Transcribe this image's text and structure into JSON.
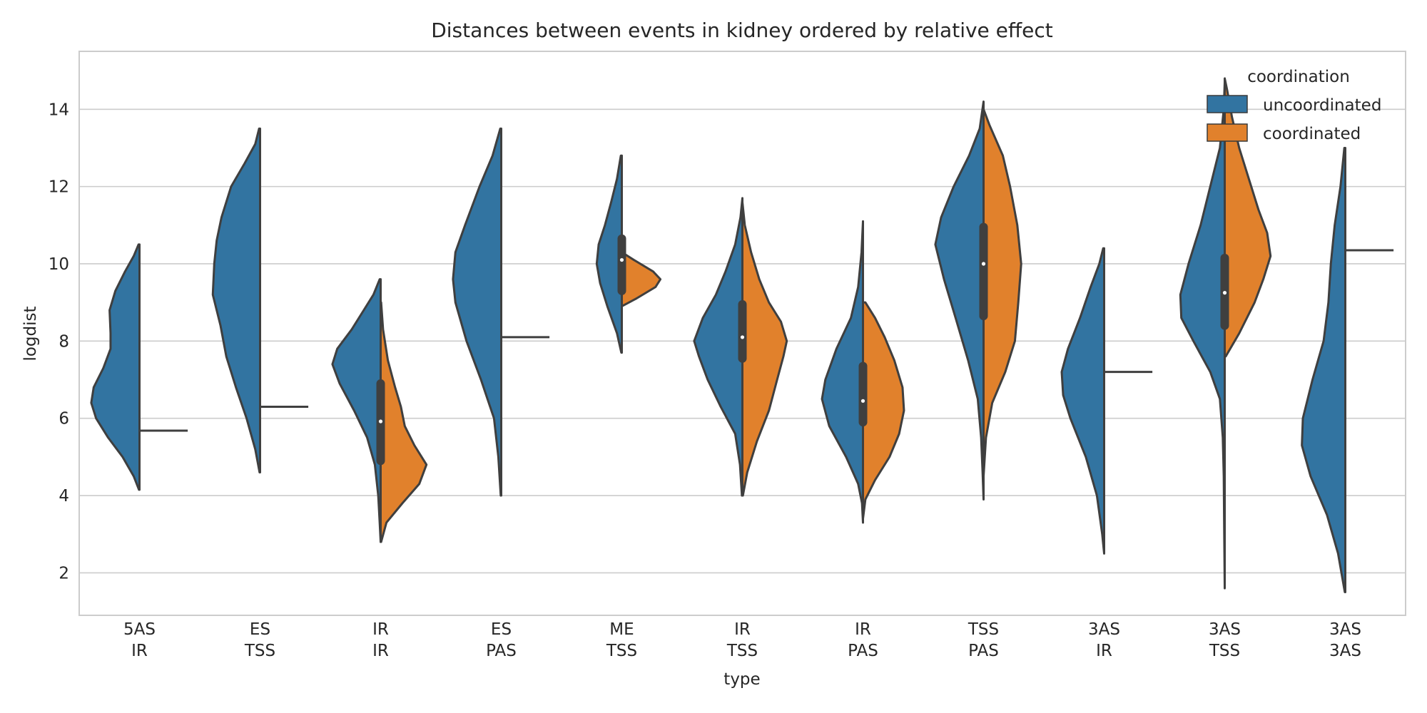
{
  "chart_data": {
    "type": "violin",
    "title": "Distances between events in kidney ordered by relative effect",
    "xlabel": "type",
    "ylabel": "logdist",
    "ylim": [
      0.9,
      15.5
    ],
    "yticks": [
      2,
      4,
      6,
      8,
      10,
      12,
      14
    ],
    "grid": true,
    "split": true,
    "categories": [
      {
        "top": "5AS",
        "bottom": "IR"
      },
      {
        "top": "ES",
        "bottom": "TSS"
      },
      {
        "top": "IR",
        "bottom": "IR"
      },
      {
        "top": "ES",
        "bottom": "PAS"
      },
      {
        "top": "ME",
        "bottom": "TSS"
      },
      {
        "top": "IR",
        "bottom": "TSS"
      },
      {
        "top": "IR",
        "bottom": "PAS"
      },
      {
        "top": "TSS",
        "bottom": "PAS"
      },
      {
        "top": "3AS",
        "bottom": "IR"
      },
      {
        "top": "3AS",
        "bottom": "TSS"
      },
      {
        "top": "3AS",
        "bottom": "3AS"
      }
    ],
    "legend": {
      "title": "coordination",
      "position": "top-right",
      "entries": [
        {
          "label": "uncoordinated",
          "color": "#3274a1"
        },
        {
          "label": "coordinated",
          "color": "#e1812c"
        }
      ]
    },
    "series": [
      {
        "name": "uncoordinated",
        "color": "#3274a1",
        "violins": [
          {
            "profile": [
              [
                4.15,
                0.01
              ],
              [
                4.5,
                0.12
              ],
              [
                5.0,
                0.35
              ],
              [
                5.5,
                0.65
              ],
              [
                6.0,
                0.9
              ],
              [
                6.4,
                1.0
              ],
              [
                6.8,
                0.95
              ],
              [
                7.3,
                0.75
              ],
              [
                7.8,
                0.6
              ],
              [
                8.2,
                0.6
              ],
              [
                8.8,
                0.62
              ],
              [
                9.3,
                0.5
              ],
              [
                9.8,
                0.3
              ],
              [
                10.2,
                0.12
              ],
              [
                10.5,
                0.02
              ]
            ]
          },
          {
            "profile": [
              [
                4.6,
                0.01
              ],
              [
                5.2,
                0.1
              ],
              [
                6.0,
                0.28
              ],
              [
                6.8,
                0.5
              ],
              [
                7.6,
                0.7
              ],
              [
                8.4,
                0.82
              ],
              [
                9.2,
                0.98
              ],
              [
                10.0,
                0.95
              ],
              [
                10.6,
                0.9
              ],
              [
                11.2,
                0.8
              ],
              [
                12.0,
                0.6
              ],
              [
                12.6,
                0.32
              ],
              [
                13.1,
                0.1
              ],
              [
                13.5,
                0.02
              ]
            ]
          },
          {
            "profile": [
              [
                2.8,
                0.0
              ],
              [
                3.3,
                0.02
              ],
              [
                4.0,
                0.05
              ],
              [
                4.8,
                0.12
              ],
              [
                5.5,
                0.28
              ],
              [
                6.2,
                0.55
              ],
              [
                6.9,
                0.85
              ],
              [
                7.4,
                1.0
              ],
              [
                7.8,
                0.9
              ],
              [
                8.3,
                0.6
              ],
              [
                8.8,
                0.35
              ],
              [
                9.2,
                0.15
              ],
              [
                9.6,
                0.02
              ]
            ]
          },
          {
            "profile": [
              [
                4.0,
                0.01
              ],
              [
                5.0,
                0.06
              ],
              [
                6.0,
                0.15
              ],
              [
                7.0,
                0.42
              ],
              [
                8.0,
                0.72
              ],
              [
                9.0,
                0.95
              ],
              [
                9.6,
                1.0
              ],
              [
                10.3,
                0.95
              ],
              [
                11.0,
                0.75
              ],
              [
                12.0,
                0.45
              ],
              [
                12.8,
                0.18
              ],
              [
                13.5,
                0.02
              ]
            ]
          },
          {
            "profile": [
              [
                7.7,
                0.01
              ],
              [
                8.2,
                0.1
              ],
              [
                8.9,
                0.3
              ],
              [
                9.5,
                0.45
              ],
              [
                10.0,
                0.52
              ],
              [
                10.5,
                0.48
              ],
              [
                11.0,
                0.35
              ],
              [
                11.6,
                0.22
              ],
              [
                12.2,
                0.1
              ],
              [
                12.8,
                0.02
              ]
            ]
          },
          {
            "profile": [
              [
                4.0,
                0.01
              ],
              [
                4.8,
                0.05
              ],
              [
                5.6,
                0.15
              ],
              [
                6.3,
                0.45
              ],
              [
                7.0,
                0.72
              ],
              [
                7.6,
                0.9
              ],
              [
                8.0,
                1.0
              ],
              [
                8.6,
                0.82
              ],
              [
                9.2,
                0.55
              ],
              [
                9.8,
                0.35
              ],
              [
                10.5,
                0.15
              ],
              [
                11.2,
                0.04
              ],
              [
                11.7,
                0.0
              ]
            ]
          },
          {
            "profile": [
              [
                3.3,
                0.0
              ],
              [
                3.8,
                0.02
              ],
              [
                4.3,
                0.1
              ],
              [
                5.0,
                0.35
              ],
              [
                5.8,
                0.7
              ],
              [
                6.5,
                0.85
              ],
              [
                7.0,
                0.78
              ],
              [
                7.8,
                0.55
              ],
              [
                8.6,
                0.25
              ],
              [
                9.4,
                0.1
              ],
              [
                10.3,
                0.03
              ],
              [
                11.1,
                0.0
              ]
            ]
          },
          {
            "profile": [
              [
                3.9,
                0.0
              ],
              [
                4.6,
                0.02
              ],
              [
                5.5,
                0.05
              ],
              [
                6.5,
                0.12
              ],
              [
                7.5,
                0.32
              ],
              [
                8.6,
                0.58
              ],
              [
                9.6,
                0.82
              ],
              [
                10.5,
                1.0
              ],
              [
                11.2,
                0.88
              ],
              [
                12.0,
                0.62
              ],
              [
                12.8,
                0.3
              ],
              [
                13.5,
                0.08
              ],
              [
                14.2,
                0.0
              ]
            ]
          },
          {
            "profile": [
              [
                2.5,
                0.0
              ],
              [
                3.0,
                0.04
              ],
              [
                4.0,
                0.15
              ],
              [
                5.0,
                0.38
              ],
              [
                6.0,
                0.7
              ],
              [
                6.6,
                0.85
              ],
              [
                7.2,
                0.88
              ],
              [
                7.8,
                0.75
              ],
              [
                8.6,
                0.5
              ],
              [
                9.4,
                0.28
              ],
              [
                10.0,
                0.1
              ],
              [
                10.4,
                0.02
              ]
            ]
          },
          {
            "profile": [
              [
                1.6,
                0.0
              ],
              [
                3.0,
                0.01
              ],
              [
                4.5,
                0.02
              ],
              [
                5.5,
                0.04
              ],
              [
                6.5,
                0.1
              ],
              [
                7.2,
                0.3
              ],
              [
                8.0,
                0.65
              ],
              [
                8.6,
                0.9
              ],
              [
                9.2,
                0.92
              ],
              [
                10.0,
                0.75
              ],
              [
                11.0,
                0.5
              ],
              [
                12.0,
                0.3
              ],
              [
                13.0,
                0.1
              ],
              [
                14.0,
                0.02
              ],
              [
                14.7,
                0.0
              ]
            ]
          },
          {
            "profile": [
              [
                1.5,
                0.01
              ],
              [
                2.5,
                0.15
              ],
              [
                3.5,
                0.38
              ],
              [
                4.5,
                0.72
              ],
              [
                5.3,
                0.9
              ],
              [
                6.0,
                0.88
              ],
              [
                7.0,
                0.68
              ],
              [
                8.0,
                0.45
              ],
              [
                9.0,
                0.35
              ],
              [
                10.0,
                0.3
              ],
              [
                11.0,
                0.22
              ],
              [
                12.0,
                0.1
              ],
              [
                13.0,
                0.02
              ]
            ]
          }
        ]
      },
      {
        "name": "coordinated",
        "color": "#e1812c",
        "violins": [
          {
            "single": 5.68
          },
          {
            "single": 6.3
          },
          {
            "profile": [
              [
                2.8,
                0.01
              ],
              [
                3.3,
                0.12
              ],
              [
                3.8,
                0.45
              ],
              [
                4.3,
                0.8
              ],
              [
                4.8,
                0.95
              ],
              [
                5.3,
                0.7
              ],
              [
                5.8,
                0.5
              ],
              [
                6.3,
                0.42
              ],
              [
                6.8,
                0.3
              ],
              [
                7.5,
                0.15
              ],
              [
                8.3,
                0.05
              ],
              [
                9.0,
                0.01
              ]
            ]
          },
          {
            "single": 8.1
          },
          {
            "profile": [
              [
                8.9,
                0.0
              ],
              [
                9.1,
                0.3
              ],
              [
                9.4,
                0.7
              ],
              [
                9.6,
                0.8
              ],
              [
                9.8,
                0.65
              ],
              [
                10.1,
                0.25
              ],
              [
                10.3,
                0.0
              ]
            ]
          },
          {
            "profile": [
              [
                4.0,
                0.01
              ],
              [
                4.6,
                0.1
              ],
              [
                5.4,
                0.3
              ],
              [
                6.2,
                0.55
              ],
              [
                7.0,
                0.72
              ],
              [
                7.6,
                0.85
              ],
              [
                8.0,
                0.92
              ],
              [
                8.5,
                0.8
              ],
              [
                9.0,
                0.55
              ],
              [
                9.6,
                0.35
              ],
              [
                10.3,
                0.18
              ],
              [
                11.0,
                0.05
              ],
              [
                11.6,
                0.0
              ]
            ]
          },
          {
            "profile": [
              [
                3.4,
                0.0
              ],
              [
                3.9,
                0.05
              ],
              [
                4.4,
                0.25
              ],
              [
                5.0,
                0.55
              ],
              [
                5.6,
                0.75
              ],
              [
                6.2,
                0.85
              ],
              [
                6.8,
                0.82
              ],
              [
                7.5,
                0.65
              ],
              [
                8.1,
                0.45
              ],
              [
                8.6,
                0.25
              ],
              [
                9.0,
                0.05
              ]
            ]
          },
          {
            "profile": [
              [
                4.5,
                0.0
              ],
              [
                5.5,
                0.05
              ],
              [
                6.4,
                0.18
              ],
              [
                7.2,
                0.45
              ],
              [
                8.0,
                0.65
              ],
              [
                9.0,
                0.72
              ],
              [
                10.0,
                0.78
              ],
              [
                11.0,
                0.7
              ],
              [
                12.0,
                0.55
              ],
              [
                12.8,
                0.4
              ],
              [
                13.6,
                0.12
              ],
              [
                14.0,
                0.0
              ]
            ]
          },
          {
            "single": 7.2
          },
          {
            "profile": [
              [
                7.6,
                0.02
              ],
              [
                8.2,
                0.3
              ],
              [
                9.0,
                0.62
              ],
              [
                9.6,
                0.8
              ],
              [
                10.2,
                0.95
              ],
              [
                10.8,
                0.88
              ],
              [
                11.4,
                0.7
              ],
              [
                12.2,
                0.5
              ],
              [
                13.0,
                0.3
              ],
              [
                13.8,
                0.15
              ],
              [
                14.5,
                0.05
              ],
              [
                14.8,
                0.0
              ]
            ]
          },
          {
            "single": 10.35
          }
        ]
      }
    ],
    "inner_box": [
      null,
      null,
      {
        "q1": 4.9,
        "median": 5.92,
        "q3": 6.9
      },
      null,
      {
        "q1": 9.3,
        "median": 10.1,
        "q3": 10.65
      },
      {
        "q1": 7.55,
        "median": 8.1,
        "q3": 8.95
      },
      {
        "q1": 5.9,
        "median": 6.45,
        "q3": 7.35
      },
      {
        "q1": 8.65,
        "median": 10.0,
        "q3": 10.95
      },
      null,
      {
        "q1": 8.4,
        "median": 9.25,
        "q3": 10.15
      },
      null
    ]
  }
}
